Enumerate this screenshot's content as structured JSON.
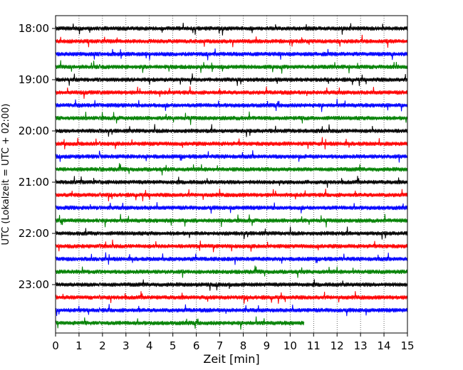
{
  "chart_data": {
    "type": "line",
    "title": "",
    "xlabel": "Zeit  [min]",
    "ylabel": "UTC (Lokalzeit = UTC + 02:00)",
    "xlim": [
      0,
      15
    ],
    "x_ticks": [
      "0",
      "1",
      "2",
      "3",
      "4",
      "5",
      "6",
      "7",
      "8",
      "9",
      "10",
      "11",
      "12",
      "13",
      "14",
      "15"
    ],
    "y_ticks": [
      "18:00",
      "19:00",
      "20:00",
      "21:00",
      "22:00",
      "23:00"
    ],
    "grid": "vertical dotted lines at each minute",
    "colors": [
      "#000000",
      "#ff0000",
      "#0000ff",
      "#008000"
    ],
    "traces": [
      {
        "start": "18:00",
        "color": "#000000",
        "x_end": 15
      },
      {
        "start": "18:15",
        "color": "#ff0000",
        "x_end": 15
      },
      {
        "start": "18:30",
        "color": "#0000ff",
        "x_end": 15
      },
      {
        "start": "18:45",
        "color": "#008000",
        "x_end": 15
      },
      {
        "start": "19:00",
        "color": "#000000",
        "x_end": 15
      },
      {
        "start": "19:15",
        "color": "#ff0000",
        "x_end": 15
      },
      {
        "start": "19:30",
        "color": "#0000ff",
        "x_end": 15
      },
      {
        "start": "19:45",
        "color": "#008000",
        "x_end": 15
      },
      {
        "start": "20:00",
        "color": "#000000",
        "x_end": 15
      },
      {
        "start": "20:15",
        "color": "#ff0000",
        "x_end": 15
      },
      {
        "start": "20:30",
        "color": "#0000ff",
        "x_end": 15
      },
      {
        "start": "20:45",
        "color": "#008000",
        "x_end": 15
      },
      {
        "start": "21:00",
        "color": "#000000",
        "x_end": 15
      },
      {
        "start": "21:15",
        "color": "#ff0000",
        "x_end": 15
      },
      {
        "start": "21:30",
        "color": "#0000ff",
        "x_end": 15
      },
      {
        "start": "21:45",
        "color": "#008000",
        "x_end": 15
      },
      {
        "start": "22:00",
        "color": "#000000",
        "x_end": 15
      },
      {
        "start": "22:15",
        "color": "#ff0000",
        "x_end": 15
      },
      {
        "start": "22:30",
        "color": "#0000ff",
        "x_end": 15
      },
      {
        "start": "22:45",
        "color": "#008000",
        "x_end": 15
      },
      {
        "start": "23:00",
        "color": "#000000",
        "x_end": 15
      },
      {
        "start": "23:15",
        "color": "#ff0000",
        "x_end": 15
      },
      {
        "start": "23:30",
        "color": "#0000ff",
        "x_end": 15
      },
      {
        "start": "23:45",
        "color": "#008000",
        "x_end": 10.6
      }
    ]
  }
}
